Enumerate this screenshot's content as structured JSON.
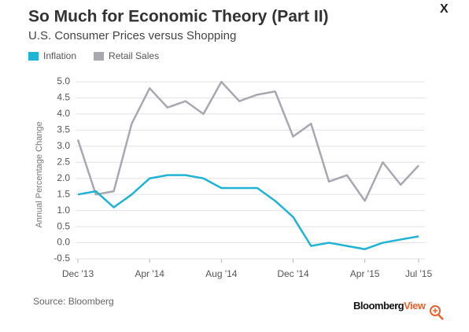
{
  "chart_data": {
    "type": "line",
    "title": "So Much for Economic Theory (Part II)",
    "subtitle": "U.S. Consumer Prices versus Shopping",
    "y_label": "Annual Percentage Change",
    "source": "Source: Bloomberg",
    "close_button": "X",
    "logo": {
      "name": "Bloomberg",
      "suffix": "View"
    },
    "categories": [
      "Dec '13",
      null,
      null,
      null,
      "Apr '14",
      null,
      null,
      null,
      "Aug '14",
      null,
      null,
      null,
      "Dec '14",
      null,
      null,
      null,
      "Apr '15",
      null,
      null,
      "Jul '15"
    ],
    "series": [
      {
        "name": "Inflation",
        "color": "#1fb3d5",
        "values": [
          1.5,
          1.6,
          1.1,
          1.5,
          2.0,
          2.1,
          2.1,
          2.0,
          1.7,
          1.7,
          1.7,
          1.3,
          0.8,
          -0.1,
          0.0,
          -0.1,
          -0.2,
          0.0,
          0.1,
          0.2
        ]
      },
      {
        "name": "Retail Sales",
        "color": "#a8a8b0",
        "values": [
          3.2,
          1.5,
          1.6,
          3.7,
          4.8,
          4.2,
          4.4,
          4.0,
          5.0,
          4.4,
          4.6,
          4.7,
          3.3,
          3.7,
          1.9,
          2.1,
          1.3,
          2.5,
          1.8,
          2.4
        ]
      }
    ],
    "ylim": [
      -0.5,
      5.0
    ],
    "yticks": [
      -0.5,
      {
        "value": 0,
        "label": "0.0"
      },
      0.5,
      {
        "value": 1,
        "label": "1.0"
      },
      1.5,
      {
        "value": 2,
        "label": "2.0"
      },
      2.5,
      {
        "value": 3,
        "label": "3.0"
      },
      3.5,
      {
        "value": 4,
        "label": "4.0"
      },
      4.5,
      {
        "value": 5,
        "label": "5.0"
      }
    ],
    "grid": true,
    "legend": "top-left"
  }
}
